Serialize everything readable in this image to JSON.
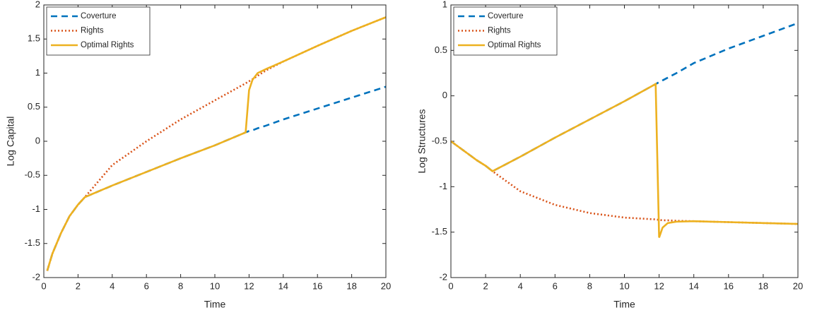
{
  "chart_data": [
    {
      "type": "line",
      "xlabel": "Time",
      "ylabel": "Log Capital",
      "xlim": [
        0,
        20
      ],
      "ylim": [
        -2,
        2
      ],
      "xticks": [
        0,
        2,
        4,
        6,
        8,
        10,
        12,
        14,
        16,
        18,
        20
      ],
      "yticks": [
        -2,
        -1.5,
        -1,
        -0.5,
        0,
        0.5,
        1,
        1.5,
        2
      ],
      "legend": "upper-left",
      "x": [
        0.2,
        0.5,
        1,
        1.5,
        2,
        2.4,
        4,
        6,
        8,
        10,
        11.8,
        12,
        12.2,
        12.5,
        13,
        14,
        16,
        18,
        20
      ],
      "series": [
        {
          "name": "Coverture",
          "color": "#0072bd",
          "line_style": "dashed",
          "values": [
            -1.9,
            -1.65,
            -1.35,
            -1.1,
            -0.93,
            -0.82,
            -0.65,
            -0.45,
            -0.25,
            -0.06,
            0.13,
            0.15,
            0.16,
            0.19,
            0.23,
            0.32,
            0.48,
            0.64,
            0.8
          ]
        },
        {
          "name": "Rights",
          "color": "#d95319",
          "line_style": "dotted",
          "values": [
            -1.9,
            -1.65,
            -1.35,
            -1.1,
            -0.93,
            -0.82,
            -0.35,
            0.0,
            0.32,
            0.6,
            0.85,
            0.88,
            0.91,
            0.96,
            1.04,
            1.17,
            1.4,
            1.62,
            1.82
          ]
        },
        {
          "name": "Optimal Rights",
          "color": "#edb120",
          "line_style": "solid",
          "values": [
            -1.9,
            -1.65,
            -1.35,
            -1.1,
            -0.93,
            -0.82,
            -0.65,
            -0.45,
            -0.25,
            -0.06,
            0.13,
            0.75,
            0.9,
            1.0,
            1.06,
            1.17,
            1.4,
            1.62,
            1.82
          ]
        }
      ]
    },
    {
      "type": "line",
      "xlabel": "Time",
      "ylabel": "Log Structures",
      "xlim": [
        0,
        20
      ],
      "ylim": [
        -2,
        1
      ],
      "xticks": [
        0,
        2,
        4,
        6,
        8,
        10,
        12,
        14,
        16,
        18,
        20
      ],
      "yticks": [
        -2,
        -1.5,
        -1,
        -0.5,
        0,
        0.5,
        1
      ],
      "legend": "upper-left",
      "x": [
        0,
        0.5,
        1,
        1.5,
        2,
        2.4,
        4,
        6,
        8,
        10,
        11.8,
        12,
        12.2,
        12.5,
        13,
        14,
        16,
        18,
        20
      ],
      "series": [
        {
          "name": "Coverture",
          "color": "#0072bd",
          "line_style": "dashed",
          "values": [
            -0.5,
            -0.57,
            -0.64,
            -0.71,
            -0.77,
            -0.83,
            -0.67,
            -0.46,
            -0.26,
            -0.06,
            0.13,
            0.15,
            0.17,
            0.2,
            0.25,
            0.36,
            0.52,
            0.66,
            0.8
          ]
        },
        {
          "name": "Rights",
          "color": "#d95319",
          "line_style": "dotted",
          "values": [
            -0.5,
            -0.57,
            -0.64,
            -0.71,
            -0.77,
            -0.83,
            -1.05,
            -1.2,
            -1.29,
            -1.34,
            -1.36,
            -1.365,
            -1.37,
            -1.37,
            -1.375,
            -1.38,
            -1.39,
            -1.4,
            -1.41
          ]
        },
        {
          "name": "Optimal Rights",
          "color": "#edb120",
          "line_style": "solid",
          "values": [
            -0.5,
            -0.57,
            -0.64,
            -0.71,
            -0.77,
            -0.83,
            -0.67,
            -0.46,
            -0.26,
            -0.06,
            0.13,
            -1.56,
            -1.45,
            -1.4,
            -1.385,
            -1.38,
            -1.39,
            -1.4,
            -1.41
          ]
        }
      ]
    }
  ]
}
